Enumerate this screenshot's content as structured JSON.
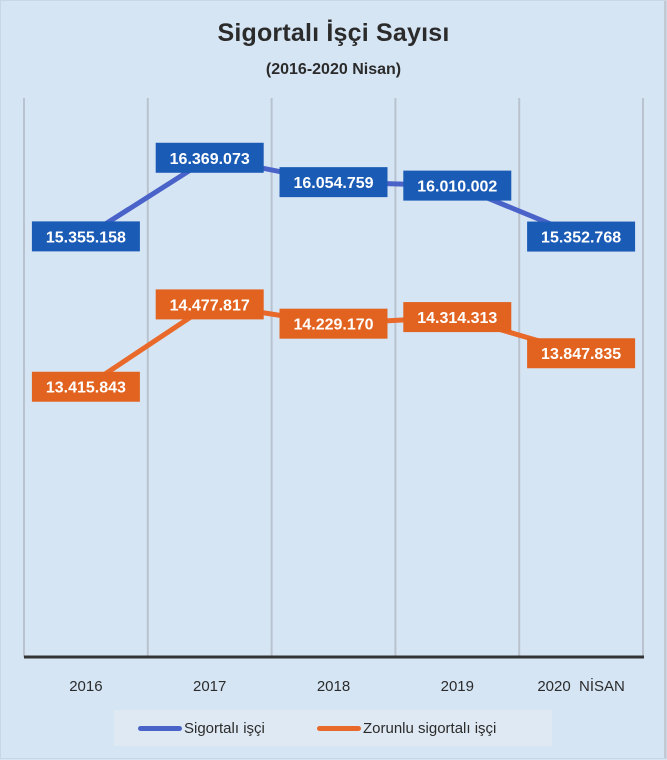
{
  "chart_data": {
    "type": "line",
    "title": "Sigortalı İşçi Sayısı",
    "subtitle": "(2016-2020 Nisan)",
    "xlabel": "",
    "ylabel": "",
    "categories": [
      "2016",
      "2017",
      "2018",
      "2019",
      "2020  NİSAN"
    ],
    "ylim": [
      9930000,
      17140000
    ],
    "y_axis_visible": false,
    "grid": "vertical category separators",
    "legend_position": "bottom",
    "series": [
      {
        "name": "Sigortalı işçi",
        "color": "#4a63c8",
        "label_bg": "#1a5bb5",
        "values": [
          15355158,
          16369073,
          16054759,
          16010002,
          15352768
        ],
        "labels": [
          "15.355.158",
          "16.369.073",
          "16.054.759",
          "16.010.002",
          "15.352.768"
        ]
      },
      {
        "name": "Zorunlu sigortalı işçi",
        "color": "#e8692a",
        "label_bg": "#e2631f",
        "values": [
          13415843,
          14477817,
          14229170,
          14314313,
          13847835
        ],
        "labels": [
          "13.415.843",
          "14.477.817",
          "14.229.170",
          "14.314.313",
          "13.847.835"
        ]
      }
    ]
  }
}
